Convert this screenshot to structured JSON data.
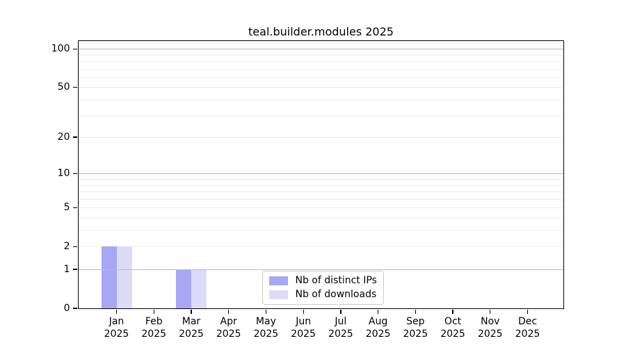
{
  "title": "teal.builder.modules 2025",
  "chart_data": {
    "type": "bar",
    "title": "teal.builder.modules 2025",
    "scale": "log1p",
    "grid": true,
    "legend_position": "bottom-center",
    "x_year": "2025",
    "categories": [
      "Jan",
      "Feb",
      "Mar",
      "Apr",
      "May",
      "Jun",
      "Jul",
      "Aug",
      "Sep",
      "Oct",
      "Nov",
      "Dec"
    ],
    "series": [
      {
        "name": "Nb of distinct IPs",
        "color": "#a7a7f3",
        "values": [
          2,
          0,
          1,
          0,
          0,
          0,
          0,
          0,
          0,
          0,
          0,
          0
        ]
      },
      {
        "name": "Nb of downloads",
        "color": "#dcdcf9",
        "values": [
          2,
          0,
          1,
          0,
          0,
          0,
          0,
          0,
          0,
          0,
          0,
          0
        ]
      }
    ],
    "ylim": [
      0,
      115
    ],
    "y_ticks": [
      0,
      1,
      2,
      5,
      10,
      20,
      50,
      100
    ],
    "major_gridlines": [
      1,
      10,
      100
    ],
    "minor_gridlines": [
      2,
      3,
      4,
      5,
      6,
      7,
      8,
      9,
      20,
      30,
      40,
      50,
      60,
      70,
      80,
      90
    ],
    "colors": {
      "major_grid": "#b9b9b9",
      "minor_grid": "#ededed",
      "axis": "#000000",
      "background": "#ffffff"
    }
  }
}
